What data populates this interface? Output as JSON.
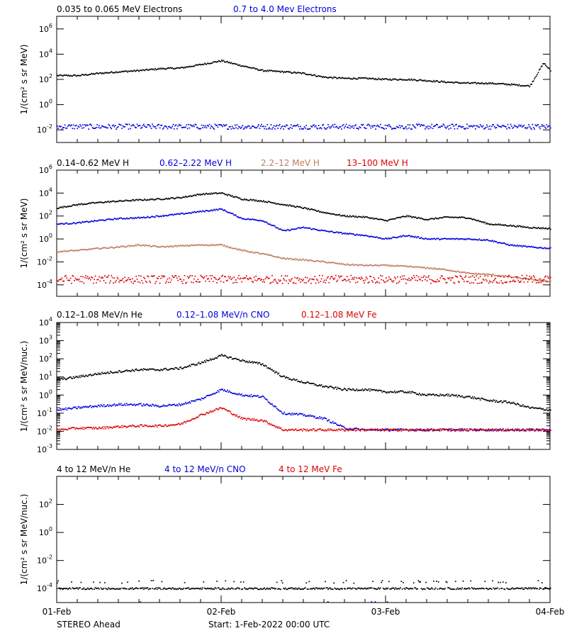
{
  "colors": {
    "black": "#000000",
    "blue": "#0000dd",
    "tan": "#c07a5e",
    "red": "#dd0000"
  },
  "x_axis": {
    "range": [
      "2022-02-01T00:00",
      "2022-02-04T00:00"
    ],
    "tick_labels": [
      {
        "label": "01-Feb",
        "value": "2022-02-01"
      },
      {
        "label": "02-Feb",
        "value": "2022-02-02"
      },
      {
        "label": "03-Feb",
        "value": "2022-02-03"
      },
      {
        "label": "04-Feb",
        "value": "2022-02-04"
      }
    ]
  },
  "footer": {
    "spacecraft": "STEREO Ahead",
    "start": "Start:  1-Feb-2022 00:00 UTC"
  },
  "chart_data": [
    {
      "type": "scatter",
      "log_scale_y": true,
      "ylabel": "1/(cm² s sr MeV)",
      "ylim": [
        0.001,
        10000000
      ],
      "y_ticks": [
        {
          "base": "10",
          "exp": "-2",
          "value": 0.01
        },
        {
          "base": "10",
          "exp": "0",
          "value": 1
        },
        {
          "base": "10",
          "exp": "2",
          "value": 100
        },
        {
          "base": "10",
          "exp": "4",
          "value": 10000
        },
        {
          "base": "10",
          "exp": "6",
          "value": 1000000
        }
      ],
      "series": [
        {
          "name": "0.035 to 0.065 MeV Electrons",
          "color": "#000000",
          "x_hours": [
            0,
            3,
            6,
            9,
            12,
            15,
            18,
            21,
            24,
            27,
            30,
            33,
            36,
            39,
            42,
            45,
            48,
            51,
            54,
            57,
            60,
            63,
            66,
            69,
            71,
            72
          ],
          "values": [
            200,
            200,
            300,
            400,
            500,
            700,
            800,
            1500,
            3000,
            1200,
            500,
            400,
            300,
            150,
            120,
            120,
            100,
            100,
            80,
            60,
            50,
            50,
            40,
            30,
            2000,
            500
          ]
        },
        {
          "name": "0.7 to 4.0 Mev Electrons",
          "color": "#0000dd",
          "x_hours": [
            0,
            72
          ],
          "values": [
            0.018,
            0.018
          ],
          "scatter": 0.2
        }
      ]
    },
    {
      "type": "scatter",
      "log_scale_y": true,
      "ylabel": "1/(cm² s sr MeV)",
      "ylim": [
        1e-05,
        1000000
      ],
      "y_ticks": [
        {
          "base": "10",
          "exp": "-4",
          "value": 0.0001
        },
        {
          "base": "10",
          "exp": "-2",
          "value": 0.01
        },
        {
          "base": "10",
          "exp": "0",
          "value": 1
        },
        {
          "base": "10",
          "exp": "2",
          "value": 100
        },
        {
          "base": "10",
          "exp": "4",
          "value": 10000
        },
        {
          "base": "10",
          "exp": "6",
          "value": 1000000
        }
      ],
      "series": [
        {
          "name": "0.14–0.62 MeV H",
          "color": "#000000",
          "x_hours": [
            0,
            3,
            6,
            9,
            12,
            15,
            18,
            21,
            24,
            27,
            30,
            33,
            36,
            39,
            42,
            45,
            48,
            51,
            54,
            57,
            60,
            63,
            66,
            69,
            72
          ],
          "values": [
            500,
            1000,
            1500,
            2000,
            2500,
            3000,
            4000,
            8000,
            10000,
            3000,
            2000,
            1000,
            500,
            200,
            100,
            80,
            40,
            100,
            50,
            80,
            70,
            20,
            15,
            10,
            8
          ]
        },
        {
          "name": "0.62–2.22 MeV H",
          "color": "#0000dd",
          "x_hours": [
            0,
            3,
            6,
            9,
            12,
            15,
            18,
            21,
            24,
            27,
            30,
            33,
            36,
            39,
            42,
            45,
            48,
            51,
            54,
            57,
            60,
            63,
            66,
            69,
            72
          ],
          "values": [
            20,
            25,
            40,
            60,
            70,
            100,
            150,
            250,
            400,
            60,
            40,
            5,
            10,
            5,
            3,
            2,
            1,
            2,
            1,
            1,
            1,
            0.8,
            0.3,
            0.2,
            0.15
          ]
        },
        {
          "name": "2.2–12 MeV H",
          "color": "#c07a5e",
          "x_hours": [
            0,
            3,
            6,
            9,
            12,
            15,
            18,
            21,
            24,
            27,
            30,
            33,
            36,
            39,
            42,
            45,
            48,
            51,
            54,
            57,
            60,
            63,
            66,
            69,
            72
          ],
          "values": [
            0.08,
            0.1,
            0.15,
            0.2,
            0.3,
            0.2,
            0.25,
            0.3,
            0.3,
            0.1,
            0.05,
            0.02,
            0.015,
            0.01,
            0.006,
            0.005,
            0.005,
            0.004,
            0.003,
            0.002,
            0.001,
            0.0008,
            0.0005,
            0.0003,
            0.0002
          ]
        },
        {
          "name": "13–100 MeV H",
          "color": "#dd0000",
          "x_hours": [
            0,
            72
          ],
          "values": [
            0.0003,
            0.0003
          ],
          "scatter": 0.35
        }
      ]
    },
    {
      "type": "scatter",
      "log_scale_y": true,
      "ylabel": "1/(cm² s sr MeV/nuc.)",
      "ylim": [
        0.001,
        10000
      ],
      "y_ticks": [
        {
          "base": "10",
          "exp": "-3",
          "value": 0.001
        },
        {
          "base": "10",
          "exp": "-2",
          "value": 0.01
        },
        {
          "base": "10",
          "exp": "-1",
          "value": 0.1
        },
        {
          "base": "10",
          "exp": "0",
          "value": 1
        },
        {
          "base": "10",
          "exp": "1",
          "value": 10
        },
        {
          "base": "10",
          "exp": "2",
          "value": 100
        },
        {
          "base": "10",
          "exp": "3",
          "value": 1000
        },
        {
          "base": "10",
          "exp": "4",
          "value": 10000
        }
      ],
      "series": [
        {
          "name": "0.12–1.08 MeV/n He",
          "color": "#000000",
          "x_hours": [
            0,
            3,
            6,
            9,
            12,
            15,
            18,
            21,
            24,
            27,
            30,
            33,
            36,
            39,
            42,
            45,
            48,
            51,
            54,
            57,
            60,
            63,
            66,
            69,
            72
          ],
          "values": [
            7,
            10,
            15,
            20,
            25,
            25,
            30,
            60,
            150,
            80,
            50,
            10,
            5,
            3,
            2,
            2,
            1.5,
            1.5,
            1,
            1,
            0.8,
            0.5,
            0.4,
            0.2,
            0.15
          ]
        },
        {
          "name": "0.12–1.08 MeV/n CNO",
          "color": "#0000dd",
          "x_hours": [
            0,
            3,
            6,
            9,
            12,
            15,
            18,
            21,
            24,
            27,
            30,
            33,
            36,
            39,
            42,
            45,
            48,
            51,
            54,
            57,
            60,
            63,
            66,
            69,
            72
          ],
          "values": [
            0.15,
            0.2,
            0.25,
            0.3,
            0.3,
            0.25,
            0.3,
            0.6,
            2,
            1,
            0.8,
            0.1,
            0.08,
            0.05,
            0.015,
            0.012,
            0.012,
            0.012,
            0.012,
            0.012,
            0.012,
            0.012,
            0.012,
            0.012,
            0.012
          ]
        },
        {
          "name": "0.12–1.08 MeV Fe",
          "color": "#dd0000",
          "x_hours": [
            0,
            3,
            6,
            9,
            12,
            15,
            18,
            21,
            24,
            27,
            30,
            33,
            36,
            39,
            42,
            45,
            48,
            51,
            54,
            57,
            60,
            63,
            66,
            69,
            72
          ],
          "values": [
            0.012,
            0.015,
            0.015,
            0.018,
            0.02,
            0.02,
            0.025,
            0.08,
            0.2,
            0.05,
            0.04,
            0.012,
            0.012,
            0.012,
            0.012,
            0.012,
            0.012,
            0.012,
            0.012,
            0.012,
            0.012,
            0.012,
            0.012,
            0.012,
            0.012
          ]
        }
      ]
    },
    {
      "type": "scatter",
      "log_scale_y": true,
      "ylabel": "1/(cm² s sr MeV/nuc.)",
      "ylim": [
        1e-05,
        10000
      ],
      "y_ticks": [
        {
          "base": "10",
          "exp": "-4",
          "value": 0.0001
        },
        {
          "base": "10",
          "exp": "-2",
          "value": 0.01
        },
        {
          "base": "10",
          "exp": "0",
          "value": 1
        },
        {
          "base": "10",
          "exp": "2",
          "value": 100
        }
      ],
      "series": [
        {
          "name": "4 to 12 MeV/n He",
          "color": "#000000",
          "x_hours": [
            0,
            72
          ],
          "values": [
            0.0001,
            0.0001
          ],
          "sparse_upper": 0.0003
        },
        {
          "name": "4 to 12 MeV/n CNO",
          "color": "#0000dd",
          "x_hours": [
            0,
            72
          ],
          "values": [
            1e-05,
            1e-05
          ],
          "sparse": true
        },
        {
          "name": "4 to 12 MeV Fe",
          "color": "#dd0000",
          "x_hours": [],
          "values": []
        }
      ]
    }
  ]
}
